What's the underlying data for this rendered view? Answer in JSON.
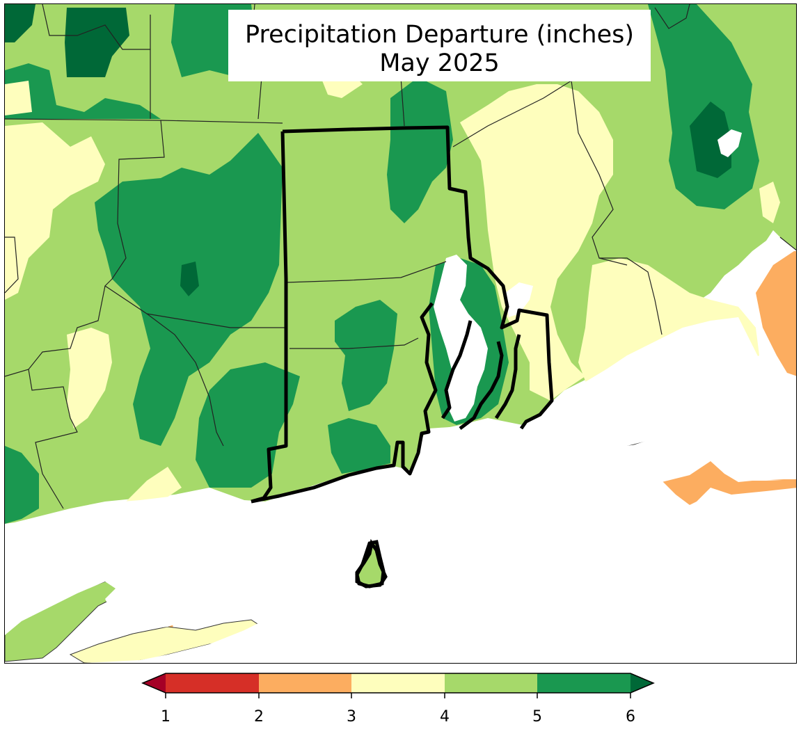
{
  "title": {
    "line1": "Precipitation Departure (inches)",
    "line2": "May 2025"
  },
  "colors": {
    "c1": "#d62f27",
    "c2": "#fcad60",
    "c3": "#fefebd",
    "c4": "#a6d96a",
    "c5": "#1a9850",
    "over": "#006837",
    "under": "#a50026",
    "water": "#ffffff"
  },
  "legend": {
    "ticks": [
      "1",
      "2",
      "3",
      "4",
      "5",
      "6"
    ],
    "extend": "both"
  }
}
